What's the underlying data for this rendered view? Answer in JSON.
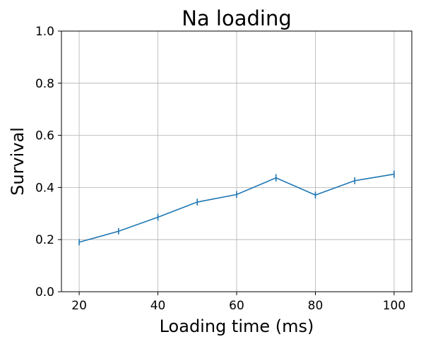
{
  "chart_data": {
    "type": "line",
    "title": "Na loading",
    "xlabel": "Loading time (ms)",
    "ylabel": "Survival",
    "xlim": [
      15.5,
      104.5
    ],
    "ylim": [
      0.0,
      1.0
    ],
    "xticks": [
      20,
      40,
      60,
      80,
      100
    ],
    "yticks": [
      0.0,
      0.2,
      0.4,
      0.6,
      0.8,
      1.0
    ],
    "grid": true,
    "color": "#1f77b4",
    "series": [
      {
        "x": [
          20,
          30,
          40,
          50,
          60,
          70,
          80,
          90,
          100
        ],
        "y": [
          0.19,
          0.232,
          0.286,
          0.344,
          0.373,
          0.437,
          0.371,
          0.426,
          0.451
        ],
        "yerr": [
          0.012,
          0.012,
          0.013,
          0.013,
          0.013,
          0.014,
          0.013,
          0.013,
          0.014
        ]
      }
    ]
  }
}
